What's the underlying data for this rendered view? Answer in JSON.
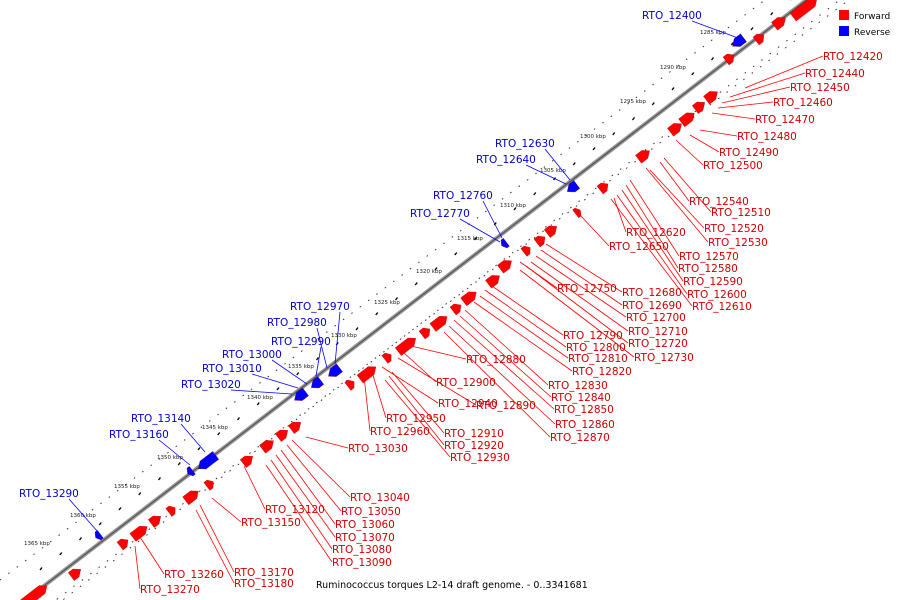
{
  "caption": "Ruminococcus torques L2-14 draft genome. - 0..3341681",
  "legend": [
    {
      "label": "Forward",
      "color": "#ff0000"
    },
    {
      "label": "Reverse",
      "color": "#0000ff"
    }
  ],
  "colors": {
    "forward": "#ff0000",
    "reverse": "#0000ff",
    "backbone": "#888888"
  },
  "ticks": [
    "1285 kbp",
    "1290 kbp",
    "1295 kbp",
    "1300 kbp",
    "1305 kbp",
    "1310 kbp",
    "1315 kbp",
    "1320 kbp",
    "1325 kbp",
    "1330 kbp",
    "1335 kbp",
    "1340 kbp",
    "1345 kbp",
    "1350 kbp",
    "1355 kbp",
    "1360 kbp",
    "1365 kbp"
  ],
  "forward_labels": [
    "RTO_12420",
    "RTO_12440",
    "RTO_12450",
    "RTO_12460",
    "RTO_12470",
    "RTO_12480",
    "RTO_12490",
    "RTO_12500",
    "RTO_12540",
    "RTO_12510",
    "RTO_12520",
    "RTO_12530",
    "RTO_12620",
    "RTO_12650",
    "RTO_12570",
    "RTO_12580",
    "RTO_12590",
    "RTO_12600",
    "RTO_12610",
    "RTO_12680",
    "RTO_12690",
    "RTO_12700",
    "RTO_12710",
    "RTO_12720",
    "RTO_12730",
    "RTO_12750",
    "RTO_12790",
    "RTO_12800",
    "RTO_12810",
    "RTO_12820",
    "RTO_12830",
    "RTO_12840",
    "RTO_12850",
    "RTO_12860",
    "RTO_12870",
    "RTO_12880",
    "RTO_12900",
    "RTO_12890",
    "RTO_12940",
    "RTO_12950",
    "RTO_12960",
    "RTO_12910",
    "RTO_12920",
    "RTO_12930",
    "RTO_13030",
    "RTO_13040",
    "RTO_13050",
    "RTO_13060",
    "RTO_13070",
    "RTO_13080",
    "RTO_13090",
    "RTO_13120",
    "RTO_13150",
    "RTO_13170",
    "RTO_13180",
    "RTO_13260",
    "RTO_13270"
  ],
  "reverse_labels": [
    "RTO_12400",
    "RTO_12630",
    "RTO_12640",
    "RTO_12760",
    "RTO_12770",
    "RTO_12970",
    "RTO_12980",
    "RTO_12990",
    "RTO_13000",
    "RTO_13010",
    "RTO_13020",
    "RTO_13140",
    "RTO_13160",
    "RTO_13290"
  ]
}
